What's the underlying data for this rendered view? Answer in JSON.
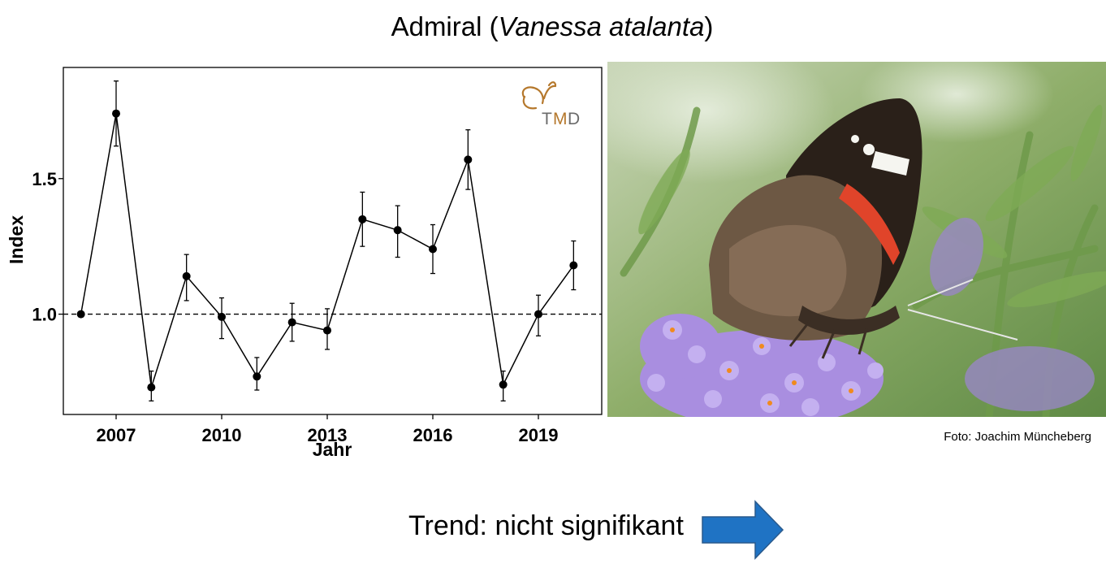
{
  "slide": {
    "title_prefix": "Admiral (",
    "species": "Vanessa atalanta",
    "title_suffix": ")",
    "photo_credit": "Foto: Joachim Müncheberg",
    "trend_text": "Trend: nicht signifikant",
    "trend_arrow_color": "#1f73c4",
    "trend_arrow_icon": "arrow-right-icon"
  },
  "logo": {
    "text_t": "T",
    "text_m": "M",
    "text_d": "D",
    "color": "#b5782c"
  },
  "chart_data": {
    "type": "line",
    "title": "",
    "xlabel": "Jahr",
    "ylabel": "Index",
    "xlim": [
      2005.5,
      2020.8
    ],
    "ylim": [
      0.63,
      1.91
    ],
    "xticks": [
      2007,
      2010,
      2013,
      2016,
      2019
    ],
    "yticks": [
      1.0,
      1.5
    ],
    "ytick_labels": [
      "1.0",
      "1.5"
    ],
    "reference_line": 1.0,
    "grid": false,
    "series": [
      {
        "x": [
          2006,
          2007,
          2008,
          2009,
          2010,
          2011,
          2012,
          2013,
          2014,
          2015,
          2016,
          2017,
          2018,
          2019,
          2020
        ],
        "y": [
          1.0,
          1.74,
          0.73,
          1.14,
          0.99,
          0.77,
          0.97,
          0.94,
          1.35,
          1.31,
          1.24,
          1.57,
          0.74,
          1.0,
          1.18
        ],
        "err_low": [
          null,
          1.62,
          0.68,
          1.05,
          0.91,
          0.72,
          0.9,
          0.87,
          1.25,
          1.21,
          1.15,
          1.46,
          0.68,
          0.92,
          1.09
        ],
        "err_high": [
          null,
          1.86,
          0.79,
          1.22,
          1.06,
          0.84,
          1.04,
          1.02,
          1.45,
          1.4,
          1.33,
          1.68,
          0.79,
          1.07,
          1.27
        ]
      }
    ]
  }
}
